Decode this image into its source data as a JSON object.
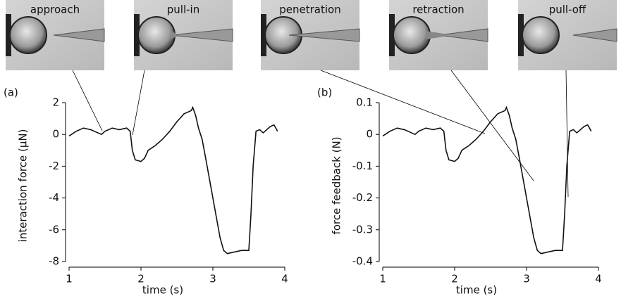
{
  "photos": [
    {
      "label": "approach"
    },
    {
      "label": "pull-in"
    },
    {
      "label": "penetration"
    },
    {
      "label": "retraction"
    },
    {
      "label": "pull-off"
    }
  ],
  "chart_data": [
    {
      "type": "line",
      "panel_label": "(a)",
      "x_label": "time (s)",
      "y_label": "interaction force (µN)",
      "xlim": [
        1,
        4
      ],
      "xticks": [
        1,
        2,
        3,
        4
      ],
      "ylim": [
        -8,
        2
      ],
      "yticks": [
        2,
        0,
        -2,
        -4,
        -6,
        -8
      ],
      "x": [
        1.0,
        1.1,
        1.2,
        1.3,
        1.4,
        1.45,
        1.5,
        1.6,
        1.7,
        1.8,
        1.85,
        1.88,
        1.92,
        2.0,
        2.05,
        2.1,
        2.2,
        2.3,
        2.4,
        2.5,
        2.6,
        2.7,
        2.72,
        2.76,
        2.8,
        2.85,
        2.9,
        3.0,
        3.1,
        3.15,
        3.2,
        3.3,
        3.4,
        3.5,
        3.53,
        3.56,
        3.6,
        3.65,
        3.7,
        3.8,
        3.85,
        3.9
      ],
      "series": [
        {
          "color": "#111111",
          "values": [
            -0.1,
            0.2,
            0.4,
            0.3,
            0.1,
            0.0,
            0.2,
            0.4,
            0.3,
            0.4,
            0.2,
            -1.0,
            -1.6,
            -1.7,
            -1.5,
            -1.0,
            -0.7,
            -0.3,
            0.2,
            0.8,
            1.3,
            1.5,
            1.7,
            1.2,
            0.4,
            -0.3,
            -1.5,
            -4.0,
            -6.5,
            -7.3,
            -7.5,
            -7.4,
            -7.3,
            -7.3,
            -5.0,
            -2.0,
            0.2,
            0.3,
            0.1,
            0.5,
            0.6,
            0.2
          ]
        }
      ]
    },
    {
      "type": "line",
      "panel_label": "(b)",
      "x_label": "time (s)",
      "y_label": "force feedback (N)",
      "xlim": [
        1,
        4
      ],
      "xticks": [
        1,
        2,
        3,
        4
      ],
      "ylim": [
        -0.4,
        0.1
      ],
      "yticks": [
        0.1,
        0,
        -0.1,
        -0.2,
        -0.3,
        -0.4
      ],
      "x": [
        1.0,
        1.1,
        1.2,
        1.3,
        1.4,
        1.45,
        1.5,
        1.6,
        1.7,
        1.8,
        1.85,
        1.88,
        1.92,
        2.0,
        2.05,
        2.1,
        2.2,
        2.3,
        2.4,
        2.5,
        2.6,
        2.7,
        2.72,
        2.76,
        2.8,
        2.85,
        2.9,
        3.0,
        3.1,
        3.15,
        3.2,
        3.3,
        3.4,
        3.5,
        3.53,
        3.56,
        3.6,
        3.65,
        3.7,
        3.8,
        3.85,
        3.9
      ],
      "series": [
        {
          "color": "#111111",
          "values": [
            -0.005,
            0.01,
            0.02,
            0.015,
            0.005,
            0,
            0.01,
            0.02,
            0.015,
            0.02,
            0.01,
            -0.05,
            -0.08,
            -0.085,
            -0.075,
            -0.05,
            -0.035,
            -0.015,
            0.01,
            0.04,
            0.065,
            0.075,
            0.085,
            0.06,
            0.02,
            -0.015,
            -0.075,
            -0.2,
            -0.325,
            -0.365,
            -0.375,
            -0.37,
            -0.365,
            -0.365,
            -0.25,
            -0.1,
            0.01,
            0.015,
            0.005,
            0.025,
            0.03,
            0.01
          ]
        }
      ]
    }
  ]
}
